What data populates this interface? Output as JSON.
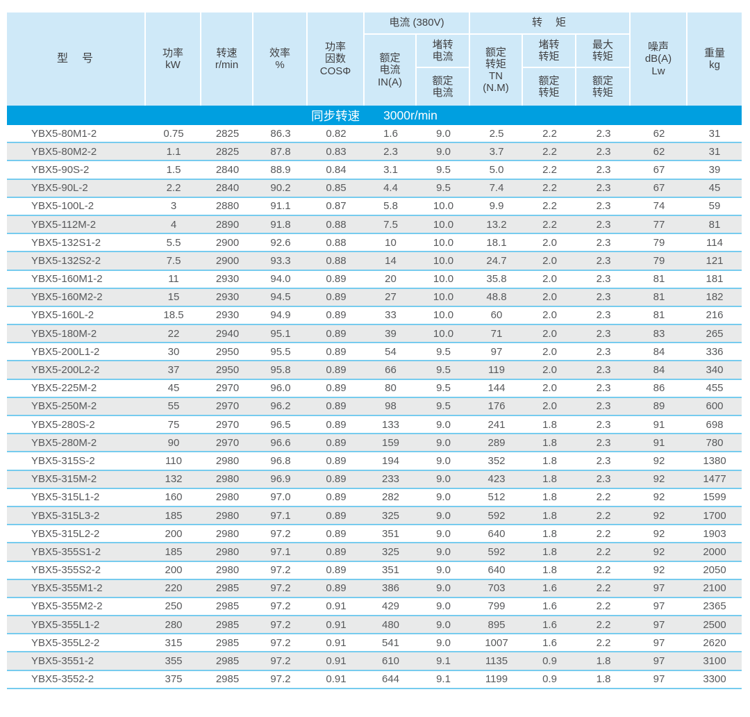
{
  "colors": {
    "header_bg": "#cfe9f8",
    "banner_bg": "#009fe0",
    "row_alt_bg": "#e9eaea",
    "row_divider": "#76cbee",
    "text": "#57585a"
  },
  "header": {
    "model": "型　号",
    "power": "功率\nkW",
    "speed": "转速\nr/min",
    "efficiency": "效率\n%",
    "cos_phi": "功率\n因数\nCOSΦ",
    "current_group": "电流 (380V)",
    "rated_current": "额定\n电流\nIN(A)",
    "locked_current": {
      "numerator": "堵转\n电流",
      "denominator": "额定\n电流"
    },
    "torque_group": "转　矩",
    "rated_torque": "额定\n转矩\nTN\n(N.M)",
    "locked_torque": {
      "numerator": "堵转\n转矩",
      "denominator": "额定\n转矩"
    },
    "max_torque": {
      "numerator": "最大\n转矩",
      "denominator": "额定\n转矩"
    },
    "noise": "噪声\ndB(A)\nLw",
    "weight": "重量\nkg"
  },
  "banner": {
    "label": "同步转速",
    "value": "3000r/min"
  },
  "column_ids": [
    "model",
    "power_kw",
    "speed_rpm",
    "efficiency_pct",
    "cos_phi",
    "rated_current_a",
    "locked_to_rated_current",
    "rated_torque_nm",
    "locked_to_rated_torque",
    "max_to_rated_torque",
    "noise_db",
    "weight_kg"
  ],
  "rows": [
    [
      "YBX5-80M1-2",
      "0.75",
      "2825",
      "86.3",
      "0.82",
      "1.6",
      "9.0",
      "2.5",
      "2.2",
      "2.3",
      "62",
      "31"
    ],
    [
      "YBX5-80M2-2",
      "1.1",
      "2825",
      "87.8",
      "0.83",
      "2.3",
      "9.0",
      "3.7",
      "2.2",
      "2.3",
      "62",
      "31"
    ],
    [
      "YBX5-90S-2",
      "1.5",
      "2840",
      "88.9",
      "0.84",
      "3.1",
      "9.5",
      "5.0",
      "2.2",
      "2.3",
      "67",
      "39"
    ],
    [
      "YBX5-90L-2",
      "2.2",
      "2840",
      "90.2",
      "0.85",
      "4.4",
      "9.5",
      "7.4",
      "2.2",
      "2.3",
      "67",
      "45"
    ],
    [
      "YBX5-100L-2",
      "3",
      "2880",
      "91.1",
      "0.87",
      "5.8",
      "10.0",
      "9.9",
      "2.2",
      "2.3",
      "74",
      "59"
    ],
    [
      "YBX5-112M-2",
      "4",
      "2890",
      "91.8",
      "0.88",
      "7.5",
      "10.0",
      "13.2",
      "2.2",
      "2.3",
      "77",
      "81"
    ],
    [
      "YBX5-132S1-2",
      "5.5",
      "2900",
      "92.6",
      "0.88",
      "10",
      "10.0",
      "18.1",
      "2.0",
      "2.3",
      "79",
      "114"
    ],
    [
      "YBX5-132S2-2",
      "7.5",
      "2900",
      "93.3",
      "0.88",
      "14",
      "10.0",
      "24.7",
      "2.0",
      "2.3",
      "79",
      "121"
    ],
    [
      "YBX5-160M1-2",
      "11",
      "2930",
      "94.0",
      "0.89",
      "20",
      "10.0",
      "35.8",
      "2.0",
      "2.3",
      "81",
      "181"
    ],
    [
      "YBX5-160M2-2",
      "15",
      "2930",
      "94.5",
      "0.89",
      "27",
      "10.0",
      "48.8",
      "2.0",
      "2.3",
      "81",
      "182"
    ],
    [
      "YBX5-160L-2",
      "18.5",
      "2930",
      "94.9",
      "0.89",
      "33",
      "10.0",
      "60",
      "2.0",
      "2.3",
      "81",
      "216"
    ],
    [
      "YBX5-180M-2",
      "22",
      "2940",
      "95.1",
      "0.89",
      "39",
      "10.0",
      "71",
      "2.0",
      "2.3",
      "83",
      "265"
    ],
    [
      "YBX5-200L1-2",
      "30",
      "2950",
      "95.5",
      "0.89",
      "54",
      "9.5",
      "97",
      "2.0",
      "2.3",
      "84",
      "336"
    ],
    [
      "YBX5-200L2-2",
      "37",
      "2950",
      "95.8",
      "0.89",
      "66",
      "9.5",
      "119",
      "2.0",
      "2.3",
      "84",
      "340"
    ],
    [
      "YBX5-225M-2",
      "45",
      "2970",
      "96.0",
      "0.89",
      "80",
      "9.5",
      "144",
      "2.0",
      "2.3",
      "86",
      "455"
    ],
    [
      "YBX5-250M-2",
      "55",
      "2970",
      "96.2",
      "0.89",
      "98",
      "9.5",
      "176",
      "2.0",
      "2.3",
      "89",
      "600"
    ],
    [
      "YBX5-280S-2",
      "75",
      "2970",
      "96.5",
      "0.89",
      "133",
      "9.0",
      "241",
      "1.8",
      "2.3",
      "91",
      "698"
    ],
    [
      "YBX5-280M-2",
      "90",
      "2970",
      "96.6",
      "0.89",
      "159",
      "9.0",
      "289",
      "1.8",
      "2.3",
      "91",
      "780"
    ],
    [
      "YBX5-315S-2",
      "110",
      "2980",
      "96.8",
      "0.89",
      "194",
      "9.0",
      "352",
      "1.8",
      "2.3",
      "92",
      "1380"
    ],
    [
      "YBX5-315M-2",
      "132",
      "2980",
      "96.9",
      "0.89",
      "233",
      "9.0",
      "423",
      "1.8",
      "2.3",
      "92",
      "1477"
    ],
    [
      "YBX5-315L1-2",
      "160",
      "2980",
      "97.0",
      "0.89",
      "282",
      "9.0",
      "512",
      "1.8",
      "2.2",
      "92",
      "1599"
    ],
    [
      "YBX5-315L3-2",
      "185",
      "2980",
      "97.1",
      "0.89",
      "325",
      "9.0",
      "592",
      "1.8",
      "2.2",
      "92",
      "1700"
    ],
    [
      "YBX5-315L2-2",
      "200",
      "2980",
      "97.2",
      "0.89",
      "351",
      "9.0",
      "640",
      "1.8",
      "2.2",
      "92",
      "1903"
    ],
    [
      "YBX5-355S1-2",
      "185",
      "2980",
      "97.1",
      "0.89",
      "325",
      "9.0",
      "592",
      "1.8",
      "2.2",
      "92",
      "2000"
    ],
    [
      "YBX5-355S2-2",
      "200",
      "2980",
      "97.2",
      "0.89",
      "351",
      "9.0",
      "640",
      "1.8",
      "2.2",
      "92",
      "2050"
    ],
    [
      "YBX5-355M1-2",
      "220",
      "2985",
      "97.2",
      "0.89",
      "386",
      "9.0",
      "703",
      "1.6",
      "2.2",
      "97",
      "2100"
    ],
    [
      "YBX5-355M2-2",
      "250",
      "2985",
      "97.2",
      "0.91",
      "429",
      "9.0",
      "799",
      "1.6",
      "2.2",
      "97",
      "2365"
    ],
    [
      "YBX5-355L1-2",
      "280",
      "2985",
      "97.2",
      "0.91",
      "480",
      "9.0",
      "895",
      "1.6",
      "2.2",
      "97",
      "2500"
    ],
    [
      "YBX5-355L2-2",
      "315",
      "2985",
      "97.2",
      "0.91",
      "541",
      "9.0",
      "1007",
      "1.6",
      "2.2",
      "97",
      "2620"
    ],
    [
      "YBX5-3551-2",
      "355",
      "2985",
      "97.2",
      "0.91",
      "610",
      "9.1",
      "1135",
      "0.9",
      "1.8",
      "97",
      "3100"
    ],
    [
      "YBX5-3552-2",
      "375",
      "2985",
      "97.2",
      "0.91",
      "644",
      "9.1",
      "1199",
      "0.9",
      "1.8",
      "97",
      "3300"
    ]
  ]
}
